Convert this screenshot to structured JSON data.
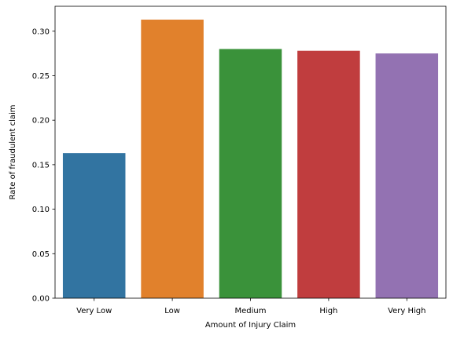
{
  "chart_data": {
    "type": "bar",
    "categories": [
      "Very Low",
      "Low",
      "Medium",
      "High",
      "Very High"
    ],
    "values": [
      0.163,
      0.313,
      0.28,
      0.278,
      0.275
    ],
    "colors": [
      "#3274a1",
      "#e1812c",
      "#3a923a",
      "#c03d3e",
      "#9372b2"
    ],
    "xlabel": "Amount of Injury Claim",
    "ylabel": "Rate of fraudulent claim",
    "ylim": [
      0,
      0.328
    ],
    "yticks": [
      "0.00",
      "0.05",
      "0.10",
      "0.15",
      "0.20",
      "0.25",
      "0.30"
    ],
    "grid": false,
    "legend": "none"
  }
}
